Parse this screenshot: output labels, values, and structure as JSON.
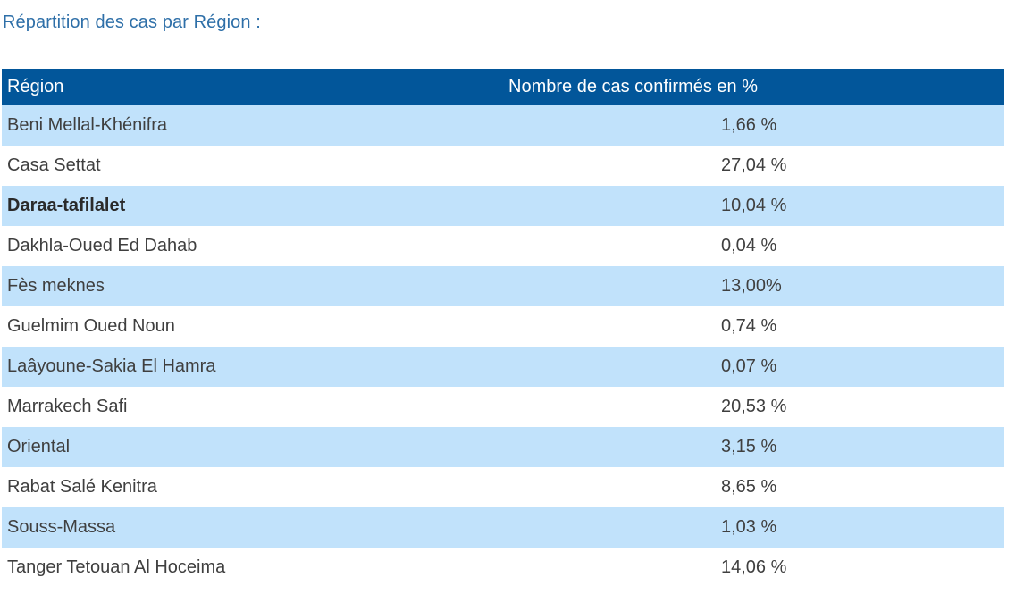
{
  "caption": "Répartition des cas par Région :",
  "table": {
    "headers": {
      "region": "Région",
      "value": "Nombre de cas confirmés en %"
    },
    "rows": [
      {
        "region": "Beni Mellal-Khénifra",
        "value": "1,66 %"
      },
      {
        "region": "Casa Settat",
        "value": "27,04 %"
      },
      {
        "region": "Daraa-tafilalet",
        "value": "10,04 %"
      },
      {
        "region": "Dakhla-Oued Ed Dahab",
        "value": "0,04 %"
      },
      {
        "region": "Fès meknes",
        "value": "13,00%"
      },
      {
        "region": "Guelmim Oued Noun",
        "value": "0,74 %"
      },
      {
        "region": "Laâyoune-Sakia El Hamra",
        "value": "0,07 %"
      },
      {
        "region": "Marrakech Safi",
        "value": "20,53 %"
      },
      {
        "region": "Oriental",
        "value": "3,15 %"
      },
      {
        "region": "Rabat Salé Kenitra",
        "value": "8,65 %"
      },
      {
        "region": "Souss-Massa",
        "value": "1,03 %"
      },
      {
        "region": "Tanger Tetouan Al Hoceima",
        "value": "14,06 %"
      }
    ]
  },
  "colors": {
    "header_bg": "#02569a",
    "odd_row_bg": "#c1e2fb",
    "caption_text": "#2e6fa8"
  }
}
